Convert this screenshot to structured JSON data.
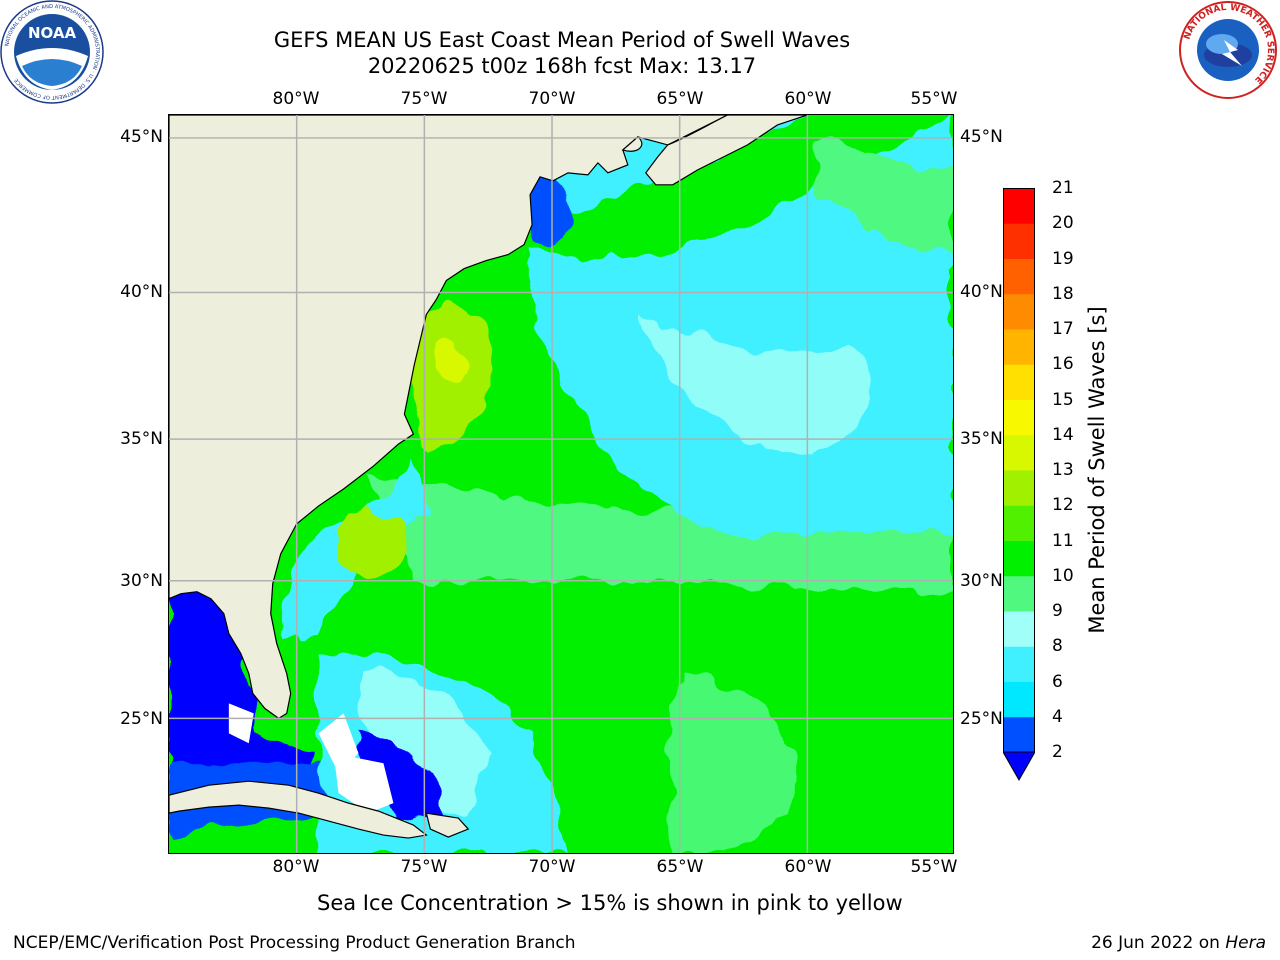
{
  "title_line1": "GEFS MEAN US East Coast Mean Period of Swell Waves",
  "title_line2": "20220625 t00z 168h fcst   Max: 13.17",
  "lon_labels": [
    "80°W",
    "75°W",
    "70°W",
    "65°W",
    "60°W",
    "55°W"
  ],
  "lat_labels": [
    "45°N",
    "40°N",
    "35°N",
    "30°N",
    "25°N"
  ],
  "colorbar": {
    "label": "Mean Period of Swell Waves [s]",
    "ticks": [
      "2",
      "4",
      "6",
      "8",
      "9",
      "10",
      "11",
      "12",
      "13",
      "14",
      "15",
      "16",
      "17",
      "18",
      "19",
      "20",
      "21"
    ],
    "colors": [
      "#0050ff",
      "#00e8ff",
      "#40f0ff",
      "#a0fff8",
      "#50f880",
      "#00f000",
      "#50f000",
      "#a0f000",
      "#d8f800",
      "#f8f800",
      "#ffe000",
      "#ffb400",
      "#ff8c00",
      "#ff6000",
      "#ff3000",
      "#ff0000"
    ],
    "under_color": "#0000ff"
  },
  "ice_note": "Sea Ice Concentration > 15% is shown in pink to yellow",
  "credit": "NCEP/EMC/Verification Post Processing Product Generation Branch",
  "date_text": "26 Jun 2022 on ",
  "date_machine": "Hera",
  "logos": {
    "noaa": "NOAA",
    "noaa_ring": "NATIONAL OCEANIC AND ATMOSPHERIC ADMINISTRATION · U.S. DEPARTMENT OF COMMERCE",
    "nws_ring": "NATIONAL WEATHER SERVICE"
  },
  "colors": {
    "land": "#eeeedc",
    "grid": "#b0b0b0"
  }
}
